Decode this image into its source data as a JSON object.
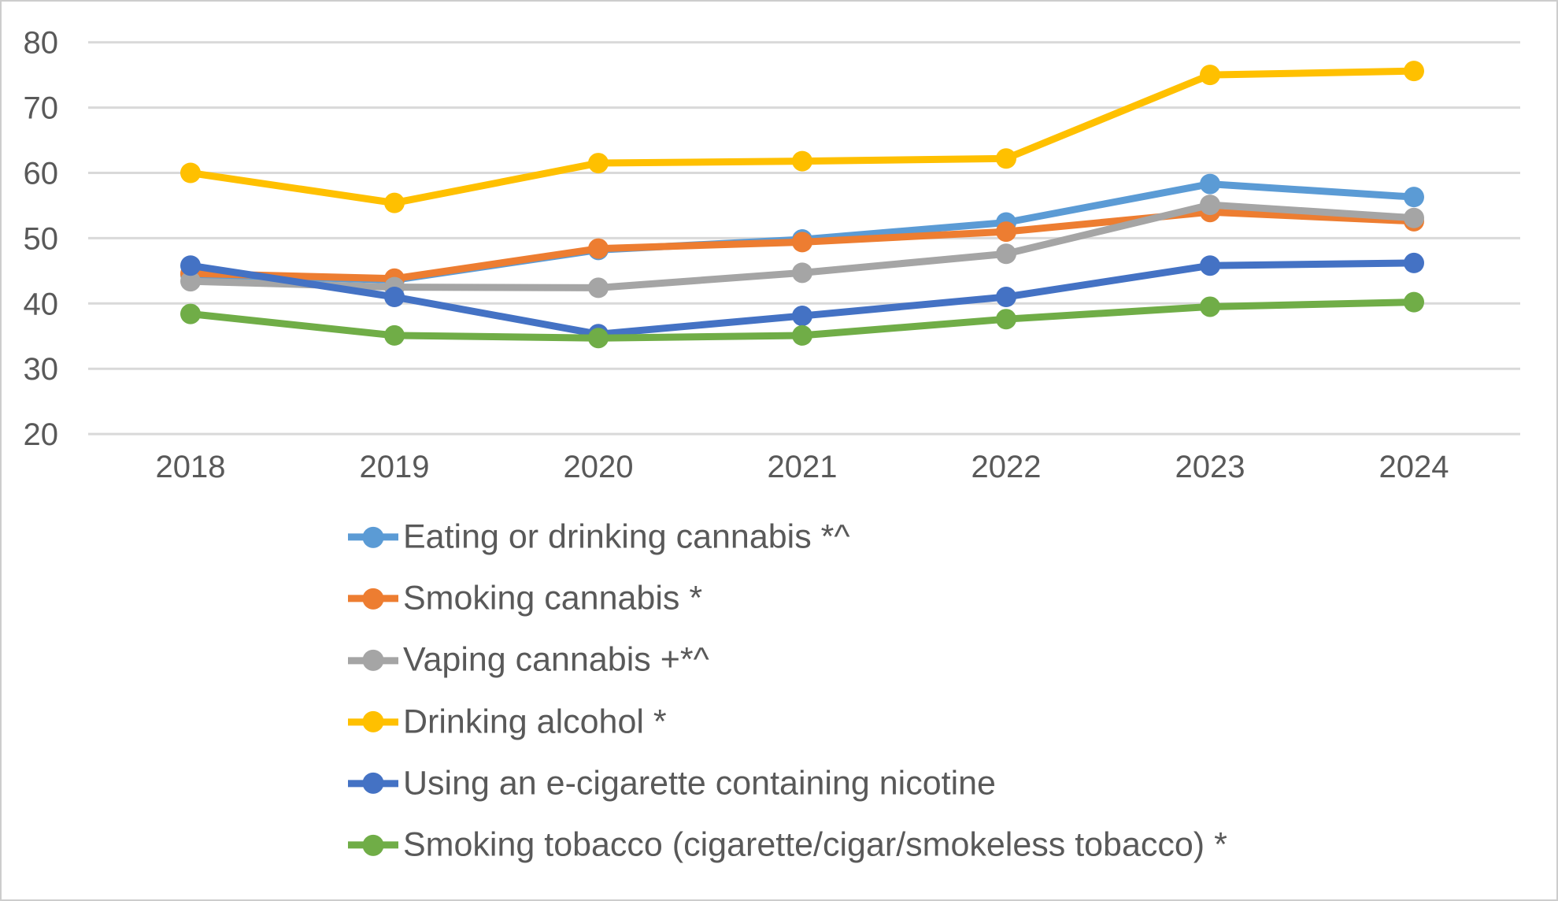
{
  "chart_data": {
    "type": "line",
    "title": "",
    "xlabel": "",
    "ylabel": "",
    "categories": [
      "2018",
      "2019",
      "2020",
      "2021",
      "2022",
      "2023",
      "2024"
    ],
    "series": [
      {
        "name": "Eating or drinking cannabis *^",
        "color": "#5B9BD5",
        "values": [
          44.4,
          43.6,
          48.2,
          49.8,
          52.4,
          58.3,
          56.3
        ]
      },
      {
        "name": "Smoking cannabis *",
        "color": "#ED7D31",
        "values": [
          44.6,
          43.8,
          48.4,
          49.4,
          51.0,
          54.0,
          52.6
        ]
      },
      {
        "name": "Vaping cannabis +*^",
        "color": "#A5A5A5",
        "values": [
          43.4,
          42.5,
          42.4,
          44.7,
          47.6,
          55.1,
          53.1
        ]
      },
      {
        "name": "Drinking alcohol *",
        "color": "#FFC000",
        "values": [
          60.0,
          55.4,
          61.5,
          61.8,
          62.2,
          75.0,
          75.6
        ]
      },
      {
        "name": "Using an e-cigarette containing nicotine",
        "color": "#4472C4",
        "values": [
          45.8,
          41.0,
          35.3,
          38.1,
          41.0,
          45.8,
          46.2
        ]
      },
      {
        "name": "Smoking tobacco (cigarette/cigar/smokeless tobacco) *",
        "color": "#70AD47",
        "values": [
          38.4,
          35.1,
          34.7,
          35.1,
          37.6,
          39.5,
          40.2
        ]
      }
    ],
    "ylim": [
      20,
      80
    ],
    "y_ticks": [
      "80",
      "70",
      "60",
      "50",
      "40",
      "30",
      "20"
    ],
    "y_tick_values": [
      80,
      70,
      60,
      50,
      40,
      30,
      20
    ],
    "grid": true,
    "legend_position": "bottom",
    "gridline_color": "#D9D9D9",
    "axis_text_color": "#595959",
    "background_color": "#FFFFFF",
    "border_color": "#CDCDCD"
  }
}
